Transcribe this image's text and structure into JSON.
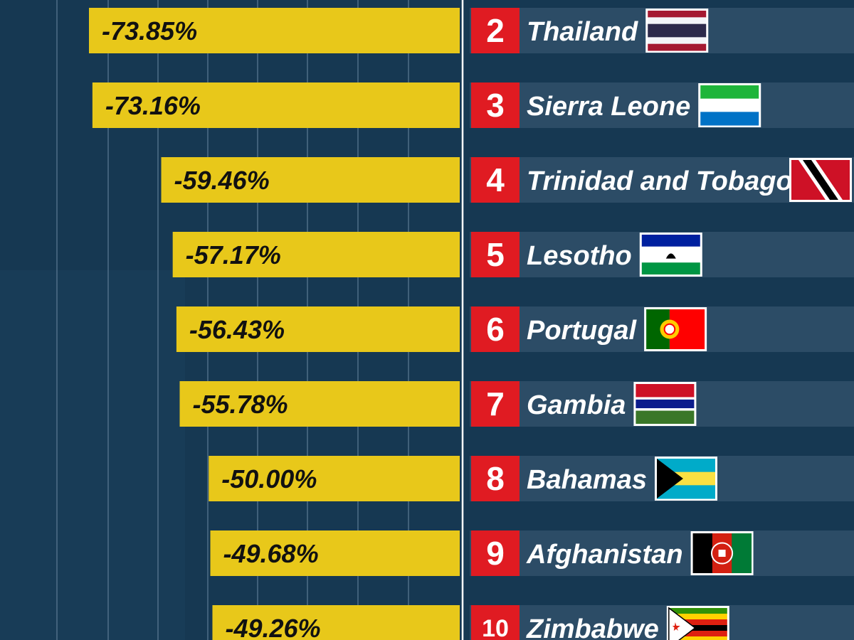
{
  "chart_data": {
    "type": "bar",
    "orientation": "horizontal",
    "x_direction": "negative-left",
    "grid": true,
    "rows": [
      {
        "rank": "2",
        "country": "Thailand",
        "value": -73.85,
        "label": "-73.85%",
        "flag": "thailand-flag"
      },
      {
        "rank": "3",
        "country": "Sierra Leone",
        "value": -73.16,
        "label": "-73.16%",
        "flag": "sierra-leone-flag"
      },
      {
        "rank": "4",
        "country": "Trinidad and Tobago",
        "value": -59.46,
        "label": "-59.46%",
        "flag": "trinidad-and-tobago-flag"
      },
      {
        "rank": "5",
        "country": "Lesotho",
        "value": -57.17,
        "label": "-57.17%",
        "flag": "lesotho-flag"
      },
      {
        "rank": "6",
        "country": "Portugal",
        "value": -56.43,
        "label": "-56.43%",
        "flag": "portugal-flag"
      },
      {
        "rank": "7",
        "country": "Gambia",
        "value": -55.78,
        "label": "-55.78%",
        "flag": "gambia-flag"
      },
      {
        "rank": "8",
        "country": "Bahamas",
        "value": -50.0,
        "label": "-50.00%",
        "flag": "bahamas-flag"
      },
      {
        "rank": "9",
        "country": "Afghanistan",
        "value": -49.68,
        "label": "-49.68%",
        "flag": "afghanistan-flag"
      },
      {
        "rank": "10",
        "country": "Zimbabwe",
        "value": -49.26,
        "label": "-49.26%",
        "flag": "zimbabwe-flag"
      }
    ]
  },
  "colors": {
    "background": "#163852",
    "bar": "#e8c81a",
    "rank_box": "#e01b22",
    "row_band": "#2c4c66",
    "gridline": "#6d8aa3",
    "text_light": "#ffffff",
    "text_dark": "#111111"
  }
}
